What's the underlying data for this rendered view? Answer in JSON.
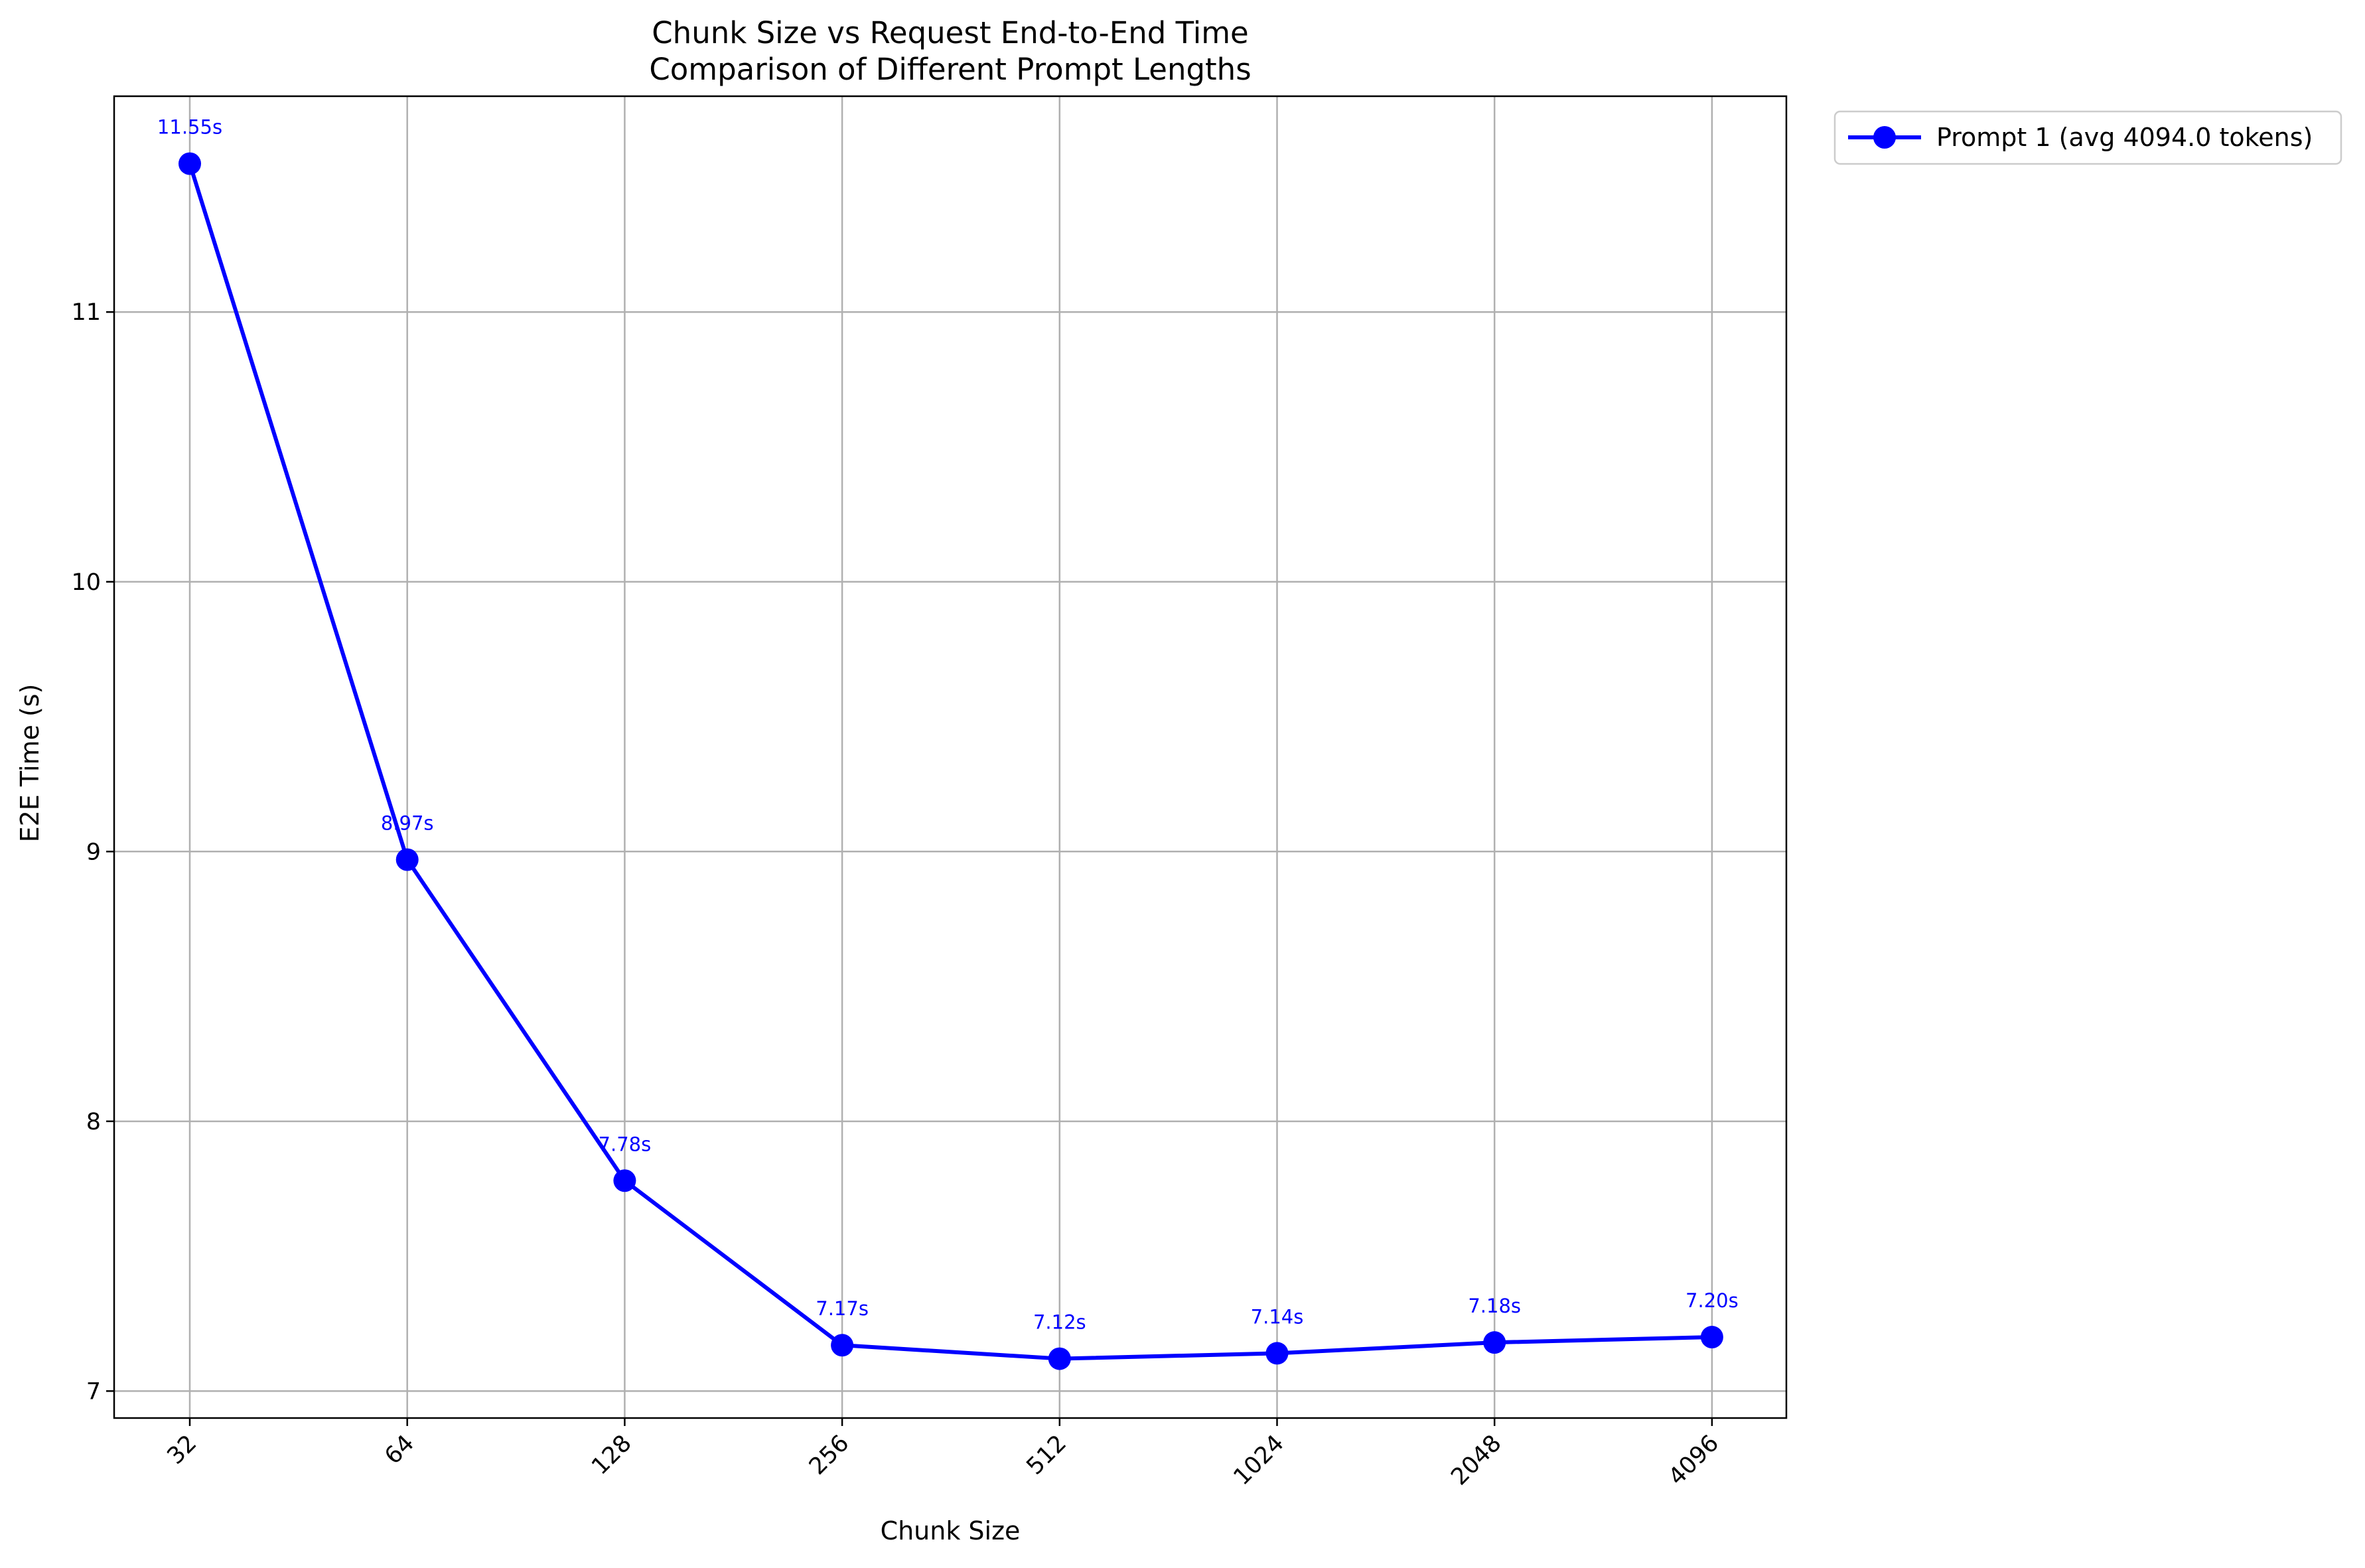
{
  "chart_data": {
    "type": "line",
    "title": "Chunk Size vs Request End-to-End Time",
    "subtitle": "Comparison of Different Prompt Lengths",
    "xlabel": "Chunk Size",
    "ylabel": "E2E Time (s)",
    "categories": [
      "32",
      "64",
      "128",
      "256",
      "512",
      "1024",
      "2048",
      "4096"
    ],
    "x_scale": "log2",
    "ylim": [
      6.9,
      11.8
    ],
    "yticks": [
      "7",
      "8",
      "9",
      "10",
      "11"
    ],
    "grid": true,
    "legend_position": "outside top-right",
    "series": [
      {
        "name": "Prompt 1 (avg 4094.0 tokens)",
        "color": "#0000ff",
        "marker": "circle",
        "values": [
          11.55,
          8.97,
          7.78,
          7.17,
          7.12,
          7.14,
          7.18,
          7.2
        ],
        "data_labels": [
          "11.55s",
          "8.97s",
          "7.78s",
          "7.17s",
          "7.12s",
          "7.14s",
          "7.18s",
          "7.20s"
        ]
      }
    ]
  }
}
